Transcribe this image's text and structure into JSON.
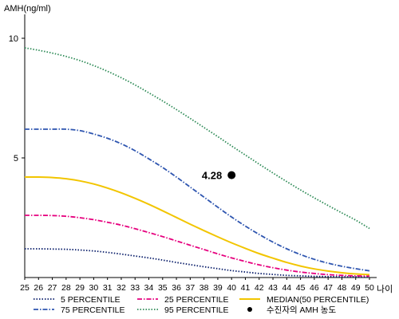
{
  "chart_data": {
    "type": "line",
    "ylabel": "AMH(ng/ml)",
    "xlabel": "나이",
    "xlim": [
      25,
      50
    ],
    "ylim": [
      0,
      11
    ],
    "y_ticks": [
      {
        "value": 10,
        "label": "10"
      },
      {
        "value": 5,
        "label": "5"
      }
    ],
    "x": [
      25,
      26,
      27,
      28,
      29,
      30,
      31,
      32,
      33,
      34,
      35,
      36,
      37,
      38,
      39,
      40,
      41,
      42,
      43,
      44,
      45,
      46,
      47,
      48,
      49,
      50
    ],
    "x_labels": [
      "25",
      "26",
      "27",
      "28",
      "29",
      "30",
      "31",
      "32",
      "33",
      "34",
      "35",
      "36",
      "37",
      "38",
      "39",
      "40",
      "41",
      "42",
      "43",
      "44",
      "45",
      "46",
      "47",
      "48",
      "49",
      "50"
    ],
    "series": [
      {
        "name": "5 PERCENTILE",
        "color": "#0b1f6b",
        "dash": "dotted",
        "values": [
          1.2,
          1.2,
          1.19,
          1.18,
          1.15,
          1.11,
          1.05,
          0.98,
          0.9,
          0.82,
          0.73,
          0.63,
          0.54,
          0.45,
          0.37,
          0.29,
          0.23,
          0.17,
          0.13,
          0.09,
          0.07,
          0.05,
          0.04,
          0.03,
          0.03,
          0.02
        ]
      },
      {
        "name": "25 PERCENTILE",
        "color": "#e6007e",
        "dash": "dashdot",
        "values": [
          2.6,
          2.6,
          2.59,
          2.56,
          2.5,
          2.42,
          2.31,
          2.19,
          2.04,
          1.88,
          1.71,
          1.53,
          1.35,
          1.17,
          0.99,
          0.82,
          0.67,
          0.53,
          0.41,
          0.31,
          0.23,
          0.17,
          0.12,
          0.09,
          0.07,
          0.06
        ]
      },
      {
        "name": "MEDIAN(50 PERCENTILE)",
        "color": "#f2c500",
        "dash": "solid",
        "values": [
          4.2,
          4.2,
          4.18,
          4.13,
          4.04,
          3.91,
          3.74,
          3.54,
          3.31,
          3.06,
          2.79,
          2.51,
          2.23,
          1.96,
          1.7,
          1.45,
          1.22,
          1.0,
          0.81,
          0.63,
          0.48,
          0.36,
          0.27,
          0.2,
          0.15,
          0.12
        ]
      },
      {
        "name": "75 PERCENTILE",
        "color": "#2f56b0",
        "dash": "dashdot",
        "values": [
          6.2,
          6.2,
          6.2,
          6.2,
          6.14,
          6.0,
          5.82,
          5.59,
          5.3,
          4.96,
          4.6,
          4.2,
          3.78,
          3.36,
          2.94,
          2.53,
          2.15,
          1.8,
          1.48,
          1.2,
          0.96,
          0.76,
          0.6,
          0.47,
          0.37,
          0.28
        ]
      },
      {
        "name": "95 PERCENTILE",
        "color": "#2e8b57",
        "dash": "dotted",
        "values": [
          9.6,
          9.5,
          9.38,
          9.24,
          9.07,
          8.86,
          8.62,
          8.35,
          8.05,
          7.72,
          7.38,
          7.02,
          6.65,
          6.27,
          5.89,
          5.5,
          5.12,
          4.74,
          4.37,
          4.01,
          3.66,
          3.33,
          3.01,
          2.7,
          2.4,
          2.05
        ]
      }
    ],
    "highlight": {
      "name": "수진자의 AMH 농도",
      "x": 40,
      "y": 4.28,
      "label": "4.28",
      "color": "#000000"
    },
    "legend": {
      "position": "bottom",
      "items": [
        "5 PERCENTILE",
        "25 PERCENTILE",
        "MEDIAN(50 PERCENTILE)",
        "75 PERCENTILE",
        "95 PERCENTILE",
        "수진자의 AMH 농도"
      ]
    },
    "grid": false
  }
}
